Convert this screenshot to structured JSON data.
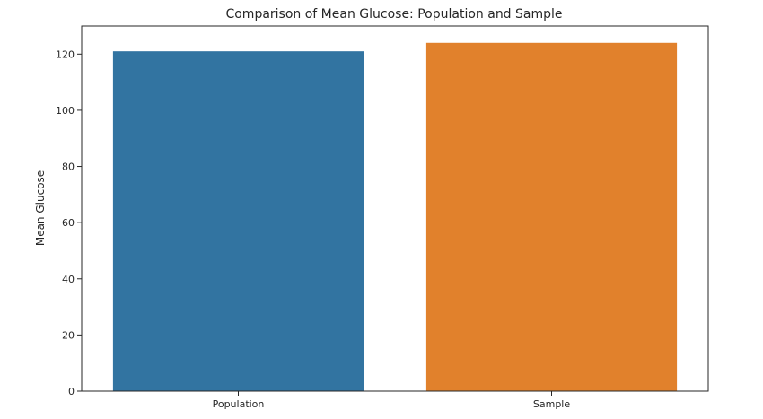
{
  "chart_data": {
    "type": "bar",
    "title": "Comparison of Mean Glucose: Population and Sample",
    "xlabel": "",
    "ylabel": "Mean Glucose",
    "categories": [
      "Population",
      "Sample"
    ],
    "values": [
      121,
      124
    ],
    "ylim": [
      0,
      130
    ],
    "yticks": [
      0,
      20,
      40,
      60,
      80,
      100,
      120
    ],
    "colors": [
      "#3274a1",
      "#e1812c"
    ],
    "grid": false,
    "legend": "none"
  }
}
